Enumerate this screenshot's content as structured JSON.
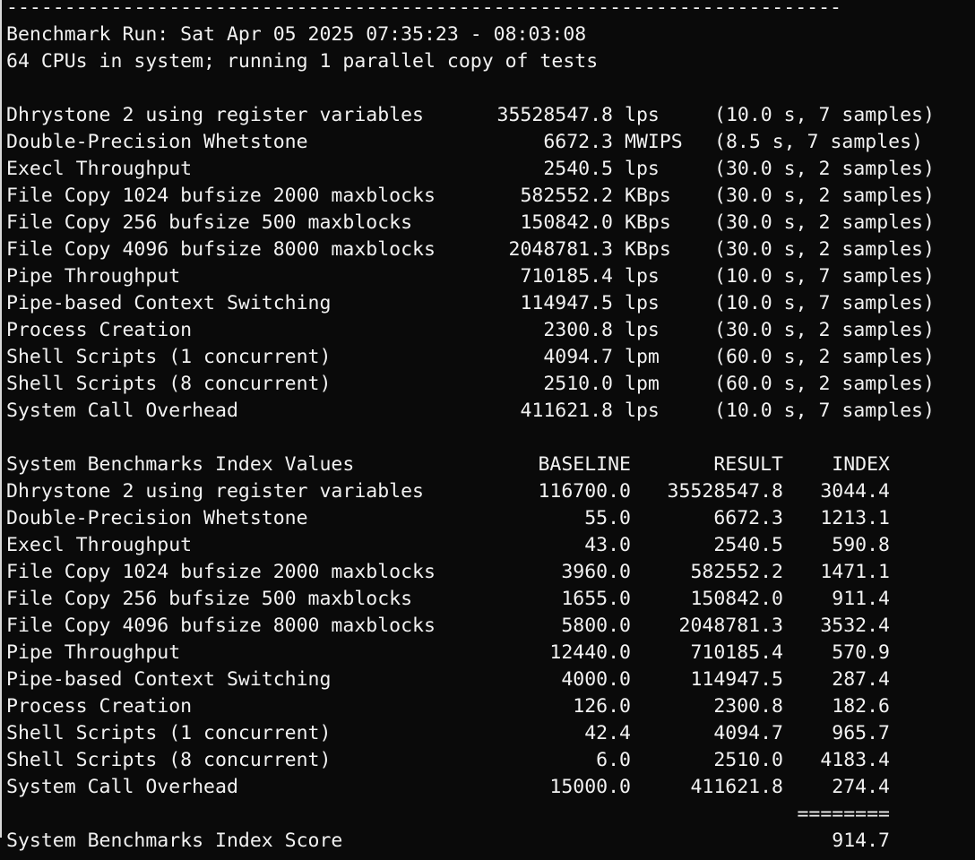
{
  "terminal": {
    "colors": {
      "background": "#0a0a0a",
      "text": "#f2f2f2",
      "window_border": "#d9d9d9"
    },
    "separator_line": "------------------------------------------------------------------------",
    "run_line": "Benchmark Run: Sat Apr 05 2025 07:35:23 - 08:03:08",
    "cpu_line": "64 CPUs in system; running 1 parallel copy of tests",
    "results": [
      {
        "name": "Dhrystone 2 using register variables",
        "value": "35528547.8",
        "unit": "lps",
        "note": "(10.0 s, 7 samples)"
      },
      {
        "name": "Double-Precision Whetstone",
        "value": "6672.3",
        "unit": "MWIPS",
        "note": "(8.5 s, 7 samples)"
      },
      {
        "name": "Execl Throughput",
        "value": "2540.5",
        "unit": "lps",
        "note": "(30.0 s, 2 samples)"
      },
      {
        "name": "File Copy 1024 bufsize 2000 maxblocks",
        "value": "582552.2",
        "unit": "KBps",
        "note": "(30.0 s, 2 samples)"
      },
      {
        "name": "File Copy 256 bufsize 500 maxblocks",
        "value": "150842.0",
        "unit": "KBps",
        "note": "(30.0 s, 2 samples)"
      },
      {
        "name": "File Copy 4096 bufsize 8000 maxblocks",
        "value": "2048781.3",
        "unit": "KBps",
        "note": "(30.0 s, 2 samples)"
      },
      {
        "name": "Pipe Throughput",
        "value": "710185.4",
        "unit": "lps",
        "note": "(10.0 s, 7 samples)"
      },
      {
        "name": "Pipe-based Context Switching",
        "value": "114947.5",
        "unit": "lps",
        "note": "(10.0 s, 7 samples)"
      },
      {
        "name": "Process Creation",
        "value": "2300.8",
        "unit": "lps",
        "note": "(30.0 s, 2 samples)"
      },
      {
        "name": "Shell Scripts (1 concurrent)",
        "value": "4094.7",
        "unit": "lpm",
        "note": "(60.0 s, 2 samples)"
      },
      {
        "name": "Shell Scripts (8 concurrent)",
        "value": "2510.0",
        "unit": "lpm",
        "note": "(60.0 s, 2 samples)"
      },
      {
        "name": "System Call Overhead",
        "value": "411621.8",
        "unit": "lps",
        "note": "(10.0 s, 7 samples)"
      }
    ],
    "index_table": {
      "title": "System Benchmarks Index Values",
      "col_baseline": "BASELINE",
      "col_result": "RESULT",
      "col_index": "INDEX",
      "rows": [
        {
          "name": "Dhrystone 2 using register variables",
          "baseline": "116700.0",
          "result": "35528547.8",
          "index": "3044.4"
        },
        {
          "name": "Double-Precision Whetstone",
          "baseline": "55.0",
          "result": "6672.3",
          "index": "1213.1"
        },
        {
          "name": "Execl Throughput",
          "baseline": "43.0",
          "result": "2540.5",
          "index": "590.8"
        },
        {
          "name": "File Copy 1024 bufsize 2000 maxblocks",
          "baseline": "3960.0",
          "result": "582552.2",
          "index": "1471.1"
        },
        {
          "name": "File Copy 256 bufsize 500 maxblocks",
          "baseline": "1655.0",
          "result": "150842.0",
          "index": "911.4"
        },
        {
          "name": "File Copy 4096 bufsize 8000 maxblocks",
          "baseline": "5800.0",
          "result": "2048781.3",
          "index": "3532.4"
        },
        {
          "name": "Pipe Throughput",
          "baseline": "12440.0",
          "result": "710185.4",
          "index": "570.9"
        },
        {
          "name": "Pipe-based Context Switching",
          "baseline": "4000.0",
          "result": "114947.5",
          "index": "287.4"
        },
        {
          "name": "Process Creation",
          "baseline": "126.0",
          "result": "2300.8",
          "index": "182.6"
        },
        {
          "name": "Shell Scripts (1 concurrent)",
          "baseline": "42.4",
          "result": "4094.7",
          "index": "965.7"
        },
        {
          "name": "Shell Scripts (8 concurrent)",
          "baseline": "6.0",
          "result": "2510.0",
          "index": "4183.4"
        },
        {
          "name": "System Call Overhead",
          "baseline": "15000.0",
          "result": "411621.8",
          "index": "274.4"
        }
      ],
      "score_separator": "========",
      "score_label": "System Benchmarks Index Score",
      "score": "914.7"
    }
  }
}
